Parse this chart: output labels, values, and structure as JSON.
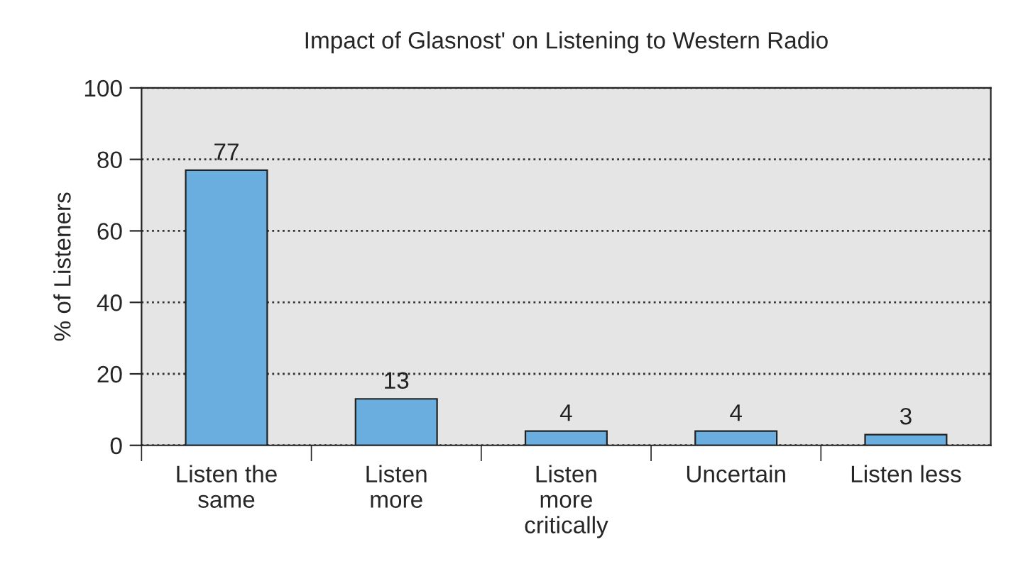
{
  "chart_data": {
    "type": "bar",
    "title": "Impact of Glasnost' on Listening to Western Radio",
    "ylabel": "% of Listeners",
    "categories": [
      "Listen the\nsame",
      "Listen\nmore",
      "Listen\nmore\ncritically",
      "Uncertain",
      "Listen less"
    ],
    "values": [
      77,
      13,
      4,
      4,
      3
    ],
    "color": "#6aaee0",
    "ylim": [
      0,
      100
    ],
    "yticks": [
      0,
      20,
      40,
      60,
      80,
      100
    ],
    "grid": "y",
    "data_labels": true
  }
}
